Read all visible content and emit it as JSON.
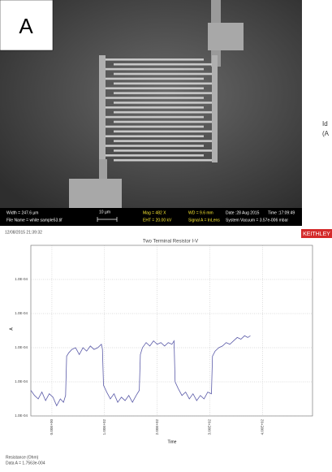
{
  "panel_label": "A",
  "side_text": [
    "Id",
    "(A"
  ],
  "sem": {
    "width": "Width = 247.6 µm",
    "file": "File Name = white sample53.tif",
    "scale": "10 µm",
    "mag": "Mag =   482 X",
    "eht": "EHT = 20.00 kV",
    "wd": "WD = 9.6 mm",
    "signal": "Signal A = InLens",
    "date": "Date :28 Aug 2015",
    "time": "Time :17:09:49",
    "vacuum": "System Vacuum = 3.57e-006 mbar"
  },
  "chart_data": {
    "type": "line",
    "title": "Two Terminal Resistor I-V",
    "timestamp": "12/08/2015 21:39:32",
    "brand": "KEITHLEY",
    "x_label": "Time",
    "y_label": "A",
    "footer": [
      "Resistance (Ohm)",
      "Data A = 1.7563e-004"
    ],
    "grid": true,
    "xlim": [
      -40,
      495
    ],
    "ylim": [
      9.6e-05,
      0.000106
    ],
    "xticks": [
      {
        "value": 0,
        "label": "0.00E+00"
      },
      {
        "value": 100,
        "label": "1.00E+02"
      },
      {
        "value": 200,
        "label": "2.00E+02"
      },
      {
        "value": 300,
        "label": "3.00E+02"
      },
      {
        "value": 400,
        "label": "4.00E+02"
      }
    ],
    "yticks": [
      {
        "value": 9.6e-05,
        "label": "1.0E-04"
      },
      {
        "value": 9.8e-05,
        "label": "1.0E-04"
      },
      {
        "value": 0.0001,
        "label": "1.0E-04"
      },
      {
        "value": 0.000102,
        "label": "1.0E-04"
      },
      {
        "value": 0.000104,
        "label": "1.0E-04"
      }
    ],
    "x": [
      -40,
      -33,
      -26,
      -19,
      -12,
      -5,
      2,
      9,
      16,
      22,
      26,
      28,
      32,
      38,
      45,
      52,
      59,
      66,
      73,
      80,
      87,
      94,
      96,
      98,
      104,
      111,
      118,
      125,
      132,
      139,
      146,
      153,
      160,
      166,
      168,
      172,
      179,
      186,
      193,
      200,
      207,
      214,
      221,
      228,
      232,
      234,
      240,
      247,
      254,
      261,
      268,
      275,
      282,
      289,
      296,
      303,
      305,
      310,
      317,
      324,
      331,
      338,
      345,
      352,
      359,
      366,
      372,
      377
    ],
    "series": [
      {
        "name": "Data A",
        "color": "#5a5aa8",
        "values": [
          9.75e-05,
          9.72e-05,
          9.7e-05,
          9.74e-05,
          9.69e-05,
          9.73e-05,
          9.71e-05,
          9.66e-05,
          9.7e-05,
          9.68e-05,
          9.72e-05,
          9.95e-05,
          9.97e-05,
          9.99e-05,
          0.0001,
          9.96e-05,
          0.0001,
          9.98e-05,
          0.0001001,
          9.99e-05,
          0.0001,
          0.0001002,
          9.99e-05,
          9.78e-05,
          9.74e-05,
          9.7e-05,
          9.73e-05,
          9.68e-05,
          9.71e-05,
          9.69e-05,
          9.72e-05,
          9.68e-05,
          9.72e-05,
          9.75e-05,
          9.96e-05,
          0.0001,
          0.0001003,
          0.0001001,
          0.0001004,
          0.0001002,
          0.0001003,
          0.0001001,
          0.0001003,
          0.0001002,
          0.0001004,
          9.8e-05,
          9.76e-05,
          9.72e-05,
          9.74e-05,
          9.7e-05,
          9.73e-05,
          9.69e-05,
          9.72e-05,
          9.7e-05,
          9.74e-05,
          9.73e-05,
          9.95e-05,
          9.98e-05,
          0.0001,
          0.0001001,
          0.0001003,
          0.0001002,
          0.0001004,
          0.0001006,
          0.0001005,
          0.0001007,
          0.0001006,
          0.0001007
        ]
      }
    ]
  }
}
